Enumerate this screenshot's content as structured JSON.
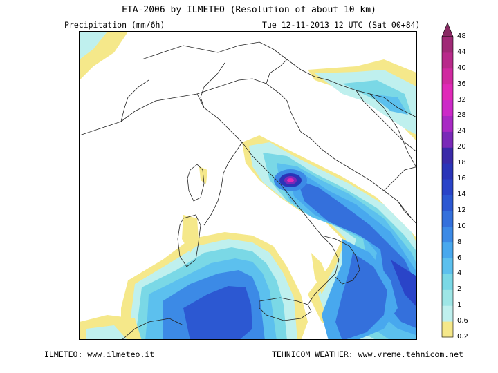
{
  "header": {
    "title": "ETA-2006 by ILMETEO (Resolution of about 10 km)",
    "variable": "Precipitation (mm/6h)",
    "valid_time": "Tue 12-11-2013 12 UTC (Sat 00+84)"
  },
  "footer": {
    "left": "ILMETEO: www.ilmeteo.it",
    "right": "TEHNICOM WEATHER: www.vreme.tehnicom.net"
  },
  "legend": {
    "levels": [
      "0.2",
      "0.6",
      "1",
      "2",
      "4",
      "6",
      "8",
      "10",
      "12",
      "14",
      "16",
      "18",
      "20",
      "24",
      "28",
      "32",
      "36",
      "40",
      "44",
      "48"
    ],
    "colors": [
      "#f5e88a",
      "#bff0ee",
      "#9ee6e6",
      "#7ad8e6",
      "#5cc0ee",
      "#48a8ee",
      "#3c8ae6",
      "#3470dc",
      "#2c58d2",
      "#2a44c8",
      "#2a34b8",
      "#3a2aa8",
      "#7a2ab8",
      "#a82ac4",
      "#cc2ac8",
      "#e02ab8",
      "#d02aa0",
      "#b82a8a",
      "#a02a76",
      "#882a62"
    ]
  }
}
